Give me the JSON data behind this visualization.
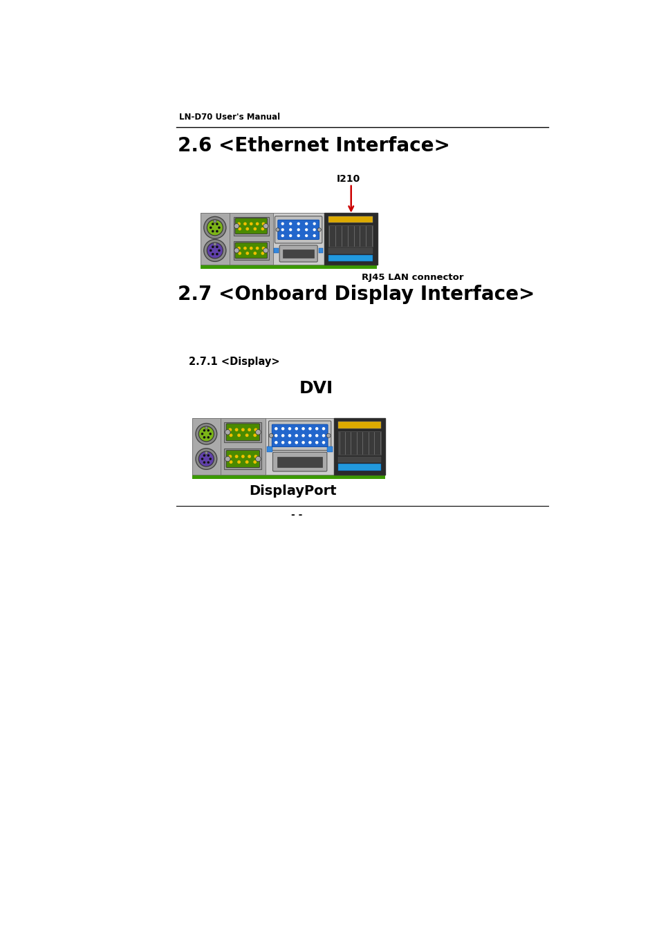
{
  "bg_color": "#ffffff",
  "header_text": "LN-D70 User's Manual",
  "section1_title": "2.6 <Ethernet Interface>",
  "section2_title": "2.7 <Onboard Display Interface>",
  "section3_title": "2.7.1 <Display>",
  "label_i210": "I210",
  "label_rj45": "RJ45 LAN connector",
  "label_dvi": "DVI",
  "label_dp": "DisplayPort",
  "footer_text": "- -",
  "green_bar_color": "#3a9a00",
  "arrow_color": "#cc0000",
  "ps2_green": "#7cb518",
  "ps2_purple": "#6040aa",
  "serial_green": "#4a8a00",
  "lan_dark": "#2a2a2a",
  "lan_yellow": "#ddaa00",
  "lan_blue": "#2299dd"
}
